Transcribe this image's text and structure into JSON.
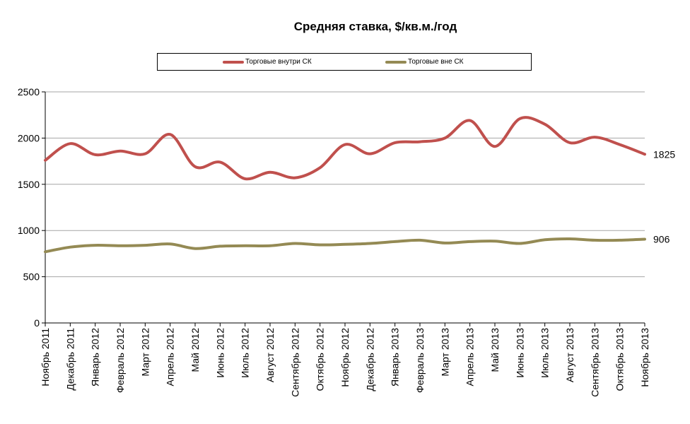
{
  "chart_data": {
    "type": "line",
    "title": "Средняя ставка, $/кв.м./год",
    "categories": [
      "Ноябрь 2011",
      "Декабрь 2011",
      "Январь 2012",
      "Февраль 2012",
      "Март 2012",
      "Апрель 2012",
      "Май 2012",
      "Июнь 2012",
      "Июль 2012",
      "Август 2012",
      "Сентябрь 2012",
      "Октябрь 2012",
      "Ноябрь 2012",
      "Декабрь 2012",
      "Январь 2013",
      "Февраль 2013",
      "Март 2013",
      "Апрель 2013",
      "Май 2013",
      "Июнь 2013",
      "Июль 2013",
      "Август 2013",
      "Сентябрь 2013",
      "Октябрь 2013",
      "Ноябрь 2013"
    ],
    "series": [
      {
        "name": "Торговые внутри СК",
        "color": "#c0504d",
        "values": [
          1760,
          1940,
          1820,
          1860,
          1830,
          2040,
          1690,
          1740,
          1560,
          1630,
          1570,
          1680,
          1930,
          1830,
          1950,
          1960,
          2000,
          2190,
          1910,
          2210,
          2150,
          1950,
          2010,
          1930,
          1825
        ]
      },
      {
        "name": "Торговые вне СК",
        "color": "#948a54",
        "values": [
          770,
          820,
          840,
          835,
          840,
          855,
          805,
          830,
          835,
          835,
          860,
          845,
          850,
          860,
          880,
          895,
          865,
          880,
          885,
          860,
          900,
          910,
          895,
          895,
          906
        ]
      }
    ],
    "end_labels": [
      "1825",
      "906"
    ],
    "yticks": [
      "0",
      "500",
      "1000",
      "1500",
      "2000",
      "2500"
    ],
    "ylim": [
      0,
      2500
    ],
    "grid": true,
    "legend": "top"
  }
}
